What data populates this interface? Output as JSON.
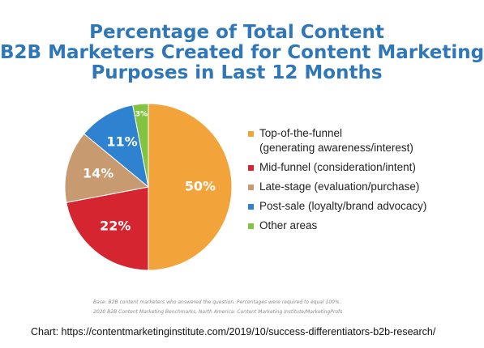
{
  "chart_data": {
    "type": "pie",
    "title_lines": [
      "Percentage of Total Content",
      "B2B Marketers Created for Content Marketing",
      "Purposes in Last 12 Months"
    ],
    "slices": [
      {
        "label": "Top-of-the-funnel\n(generating awareness/interest)",
        "value": 50,
        "display": "50%",
        "color": "#f2a43a"
      },
      {
        "label": "Mid-funnel (consideration/intent)",
        "value": 22,
        "display": "22%",
        "color": "#d42531"
      },
      {
        "label": "Late-stage (evaluation/purchase)",
        "value": 14,
        "display": "14%",
        "color": "#c79a70"
      },
      {
        "label": "Post-sale (loyalty/brand advocacy)",
        "value": 11,
        "display": "11%",
        "color": "#2e82cf"
      },
      {
        "label": "Other areas",
        "value": 3,
        "display": "3%",
        "color": "#82c341"
      }
    ],
    "legend_position": "right",
    "start_angle_deg": 0,
    "direction": "clockwise"
  },
  "note": {
    "line1": "Base: B2B content marketers who answered the question. Percentages were required to equal 100%.",
    "line2": "2020 B2B Content Marketing Benchmarks, North America: Content Marketing Institute/MarketingProfs"
  },
  "caption": "Chart: https://contentmarketinginstitute.com/2019/10/success-differentiators-b2b-research/"
}
